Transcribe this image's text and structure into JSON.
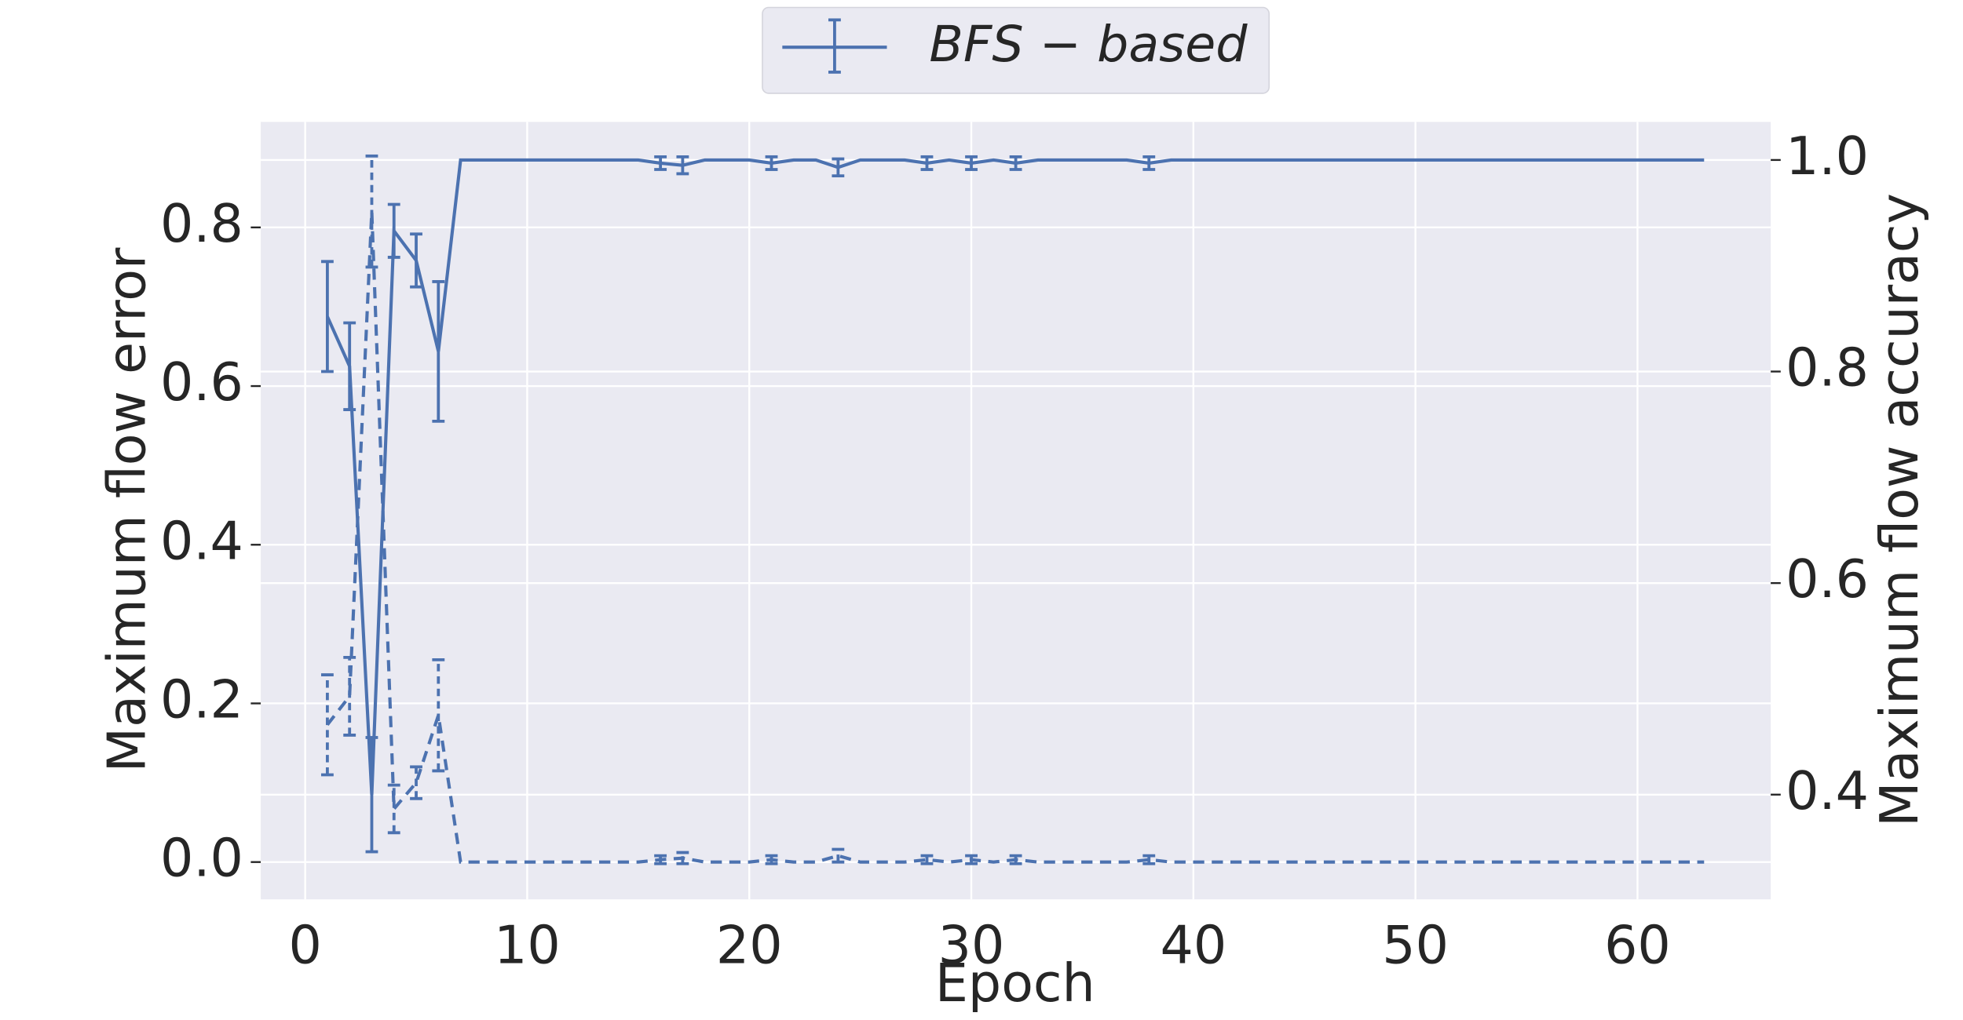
{
  "chart_data": {
    "type": "line",
    "xlabel": "Epoch",
    "ylabel": "Maximum flow error",
    "y2label": "Maximum flow accuracy",
    "xlim": [
      -2,
      66
    ],
    "ylim": [
      -0.047,
      0.933
    ],
    "y2lim": [
      0.301,
      1.036
    ],
    "xticks": [
      0,
      10,
      20,
      30,
      40,
      50,
      60
    ],
    "yticks": [
      {
        "value": 0,
        "label": "0.0"
      },
      0.2,
      0.4,
      0.6,
      0.8
    ],
    "y2ticks": [
      0.4,
      0.6,
      0.8,
      {
        "value": 1,
        "label": "1.0"
      }
    ],
    "grid": true,
    "legend": "upper center",
    "x": [
      1,
      2,
      3,
      4,
      5,
      6,
      7,
      8,
      9,
      10,
      11,
      12,
      13,
      14,
      15,
      16,
      17,
      18,
      19,
      20,
      21,
      22,
      23,
      24,
      25,
      26,
      27,
      28,
      29,
      30,
      31,
      32,
      33,
      34,
      35,
      36,
      37,
      38,
      39,
      40,
      41,
      42,
      43,
      44,
      45,
      46,
      47,
      48,
      49,
      50,
      51,
      52,
      53,
      54,
      55,
      56,
      57,
      58,
      59,
      60,
      61,
      62,
      63
    ],
    "series": [
      {
        "name": "BFS − based",
        "color": "#4c72b0",
        "axis": "y2",
        "dash": "solid",
        "values": [
          0.852,
          0.805,
          0.4,
          0.933,
          0.905,
          0.819,
          1.0,
          1.0,
          1.0,
          1.0,
          1.0,
          1.0,
          1.0,
          1.0,
          1.0,
          0.997,
          0.995,
          1.0,
          1.0,
          1.0,
          0.997,
          1.0,
          1.0,
          0.993,
          1.0,
          1.0,
          1.0,
          0.997,
          1.0,
          0.997,
          1.0,
          0.997,
          1.0,
          1.0,
          1.0,
          1.0,
          1.0,
          0.997,
          1.0,
          1.0,
          1.0,
          1.0,
          1.0,
          1.0,
          1.0,
          1.0,
          1.0,
          1.0,
          1.0,
          1.0,
          1.0,
          1.0,
          1.0,
          1.0,
          1.0,
          1.0,
          1.0,
          1.0,
          1.0,
          1.0,
          1.0,
          1.0,
          1.0
        ],
        "errors": [
          0.052,
          0.041,
          0.054,
          0.025,
          0.025,
          0.066,
          null,
          null,
          null,
          null,
          null,
          null,
          null,
          null,
          null,
          0.006,
          0.008,
          null,
          null,
          null,
          0.006,
          null,
          null,
          0.008,
          null,
          null,
          null,
          0.006,
          null,
          0.006,
          null,
          0.006,
          null,
          null,
          null,
          null,
          null,
          0.006,
          null,
          null,
          null,
          null,
          null,
          null,
          null,
          null,
          null,
          null,
          null,
          null,
          null,
          null,
          null,
          null,
          null,
          null,
          null,
          null,
          null,
          null,
          null,
          null,
          null
        ]
      },
      {
        "color": "#4c72b0",
        "axis": "y",
        "dash": "dashed",
        "values": [
          0.173,
          0.209,
          0.82,
          0.067,
          0.1,
          0.185,
          0,
          0,
          0,
          0,
          0,
          0,
          0,
          0,
          0,
          0.003,
          0.005,
          0,
          0,
          0,
          0.003,
          0,
          0,
          0.008,
          0,
          0,
          0,
          0.003,
          0,
          0.003,
          0,
          0.003,
          0,
          0,
          0,
          0,
          0,
          0.003,
          0,
          0,
          0,
          0,
          0,
          0,
          0,
          0,
          0,
          0,
          0,
          0,
          0,
          0,
          0,
          0,
          0,
          0,
          0,
          0,
          0,
          0,
          0,
          0,
          0
        ],
        "errors": [
          0.063,
          0.049,
          0.07,
          0.03,
          0.02,
          0.07,
          null,
          null,
          null,
          null,
          null,
          null,
          null,
          null,
          null,
          0.005,
          0.007,
          null,
          null,
          null,
          0.005,
          null,
          null,
          0.008,
          null,
          null,
          null,
          0.005,
          null,
          0.005,
          null,
          0.005,
          null,
          null,
          null,
          null,
          null,
          0.005,
          null,
          null,
          null,
          null,
          null,
          null,
          null,
          null,
          null,
          null,
          null,
          null,
          null,
          null,
          null,
          null,
          null,
          null,
          null,
          null,
          null,
          null,
          null,
          null,
          null
        ]
      }
    ]
  }
}
